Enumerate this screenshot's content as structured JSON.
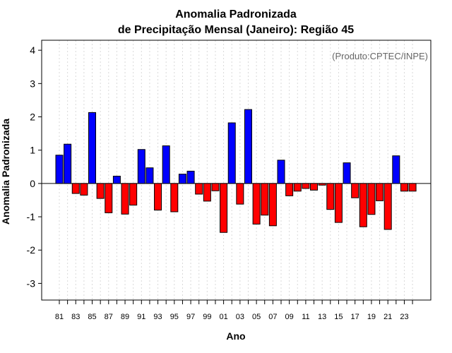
{
  "chart_data": {
    "type": "bar",
    "title_line1": "Anomalia Padronizada",
    "title_line2": "de Precipitação Mensal (Janeiro): Região 45",
    "annotation": "(Produto:CPTEC/INPE)",
    "xlabel": "Ano",
    "ylabel": "Anomalia Padronizada",
    "ylim": [
      -3.5,
      4.3
    ],
    "yticks": [
      "-3",
      "-2",
      "-1",
      "0",
      "1",
      "2",
      "3",
      "4"
    ],
    "grid": "vertical-dotted",
    "colors": {
      "positive": "#0000ff",
      "negative": "#ff0000",
      "annotation": "#666666"
    },
    "categories": [
      "81",
      "82",
      "83",
      "84",
      "85",
      "86",
      "87",
      "88",
      "89",
      "90",
      "91",
      "92",
      "93",
      "94",
      "95",
      "96",
      "97",
      "98",
      "99",
      "00",
      "01",
      "02",
      "03",
      "04",
      "05",
      "06",
      "07",
      "08",
      "09",
      "10",
      "11",
      "12",
      "13",
      "14",
      "15",
      "16",
      "17",
      "18",
      "19",
      "20",
      "21",
      "22",
      "23",
      "24"
    ],
    "xtick_labels": [
      "81",
      "83",
      "85",
      "87",
      "89",
      "91",
      "93",
      "95",
      "97",
      "99",
      "01",
      "03",
      "05",
      "07",
      "09",
      "11",
      "13",
      "15",
      "17",
      "19",
      "21",
      "23"
    ],
    "values": [
      0.85,
      1.18,
      -0.3,
      -0.35,
      2.13,
      -0.45,
      -0.88,
      0.22,
      -0.92,
      -0.65,
      1.02,
      0.47,
      -0.8,
      1.13,
      -0.85,
      0.28,
      0.37,
      -0.32,
      -0.53,
      -0.22,
      -1.47,
      1.82,
      -0.62,
      2.22,
      -1.22,
      -0.95,
      -1.27,
      0.7,
      -0.37,
      -0.23,
      -0.15,
      -0.2,
      -0.05,
      -0.78,
      -1.17,
      0.62,
      -0.43,
      -1.3,
      -0.93,
      -0.52,
      -1.38,
      0.83,
      -0.23,
      -0.23
    ]
  }
}
